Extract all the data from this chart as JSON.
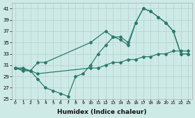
{
  "xlabel": "Humidex (Indice chaleur)",
  "bg_color": "#ceeae7",
  "grid_color": "#b8d8d5",
  "line_color": "#2a7a6a",
  "xlim": [
    -0.5,
    23.5
  ],
  "ylim": [
    25,
    42
  ],
  "yticks": [
    25,
    27,
    29,
    31,
    33,
    35,
    37,
    39,
    41
  ],
  "xticks": [
    0,
    1,
    2,
    3,
    4,
    5,
    6,
    7,
    8,
    9,
    10,
    11,
    12,
    13,
    14,
    15,
    16,
    17,
    18,
    19,
    20,
    21,
    22,
    23
  ],
  "line1_x": [
    0,
    1,
    2,
    3,
    4,
    5,
    6,
    7,
    8,
    9,
    10,
    11,
    12,
    13,
    14,
    15,
    16,
    17,
    18,
    19,
    20,
    21,
    22,
    23
  ],
  "line1_y": [
    30.5,
    30.0,
    30.0,
    28.5,
    27.0,
    26.5,
    26.0,
    25.5,
    29.0,
    29.5,
    31.0,
    33.0,
    34.5,
    36.0,
    35.5,
    34.5,
    38.5,
    41.0,
    40.5,
    39.5,
    38.5,
    37.0,
    33.0,
    33.0
  ],
  "line2_x": [
    0,
    2,
    3,
    4,
    10,
    12,
    13,
    14,
    15,
    16,
    17,
    18,
    19,
    20,
    21,
    22,
    23
  ],
  "line2_y": [
    30.5,
    30.0,
    31.5,
    31.5,
    35.0,
    37.0,
    36.0,
    36.0,
    35.0,
    38.5,
    41.0,
    40.5,
    39.5,
    38.5,
    37.0,
    33.0,
    33.0
  ],
  "line3_x": [
    0,
    1,
    2,
    3,
    10,
    11,
    12,
    13,
    14,
    15,
    16,
    17,
    18,
    19,
    20,
    21,
    22,
    23
  ],
  "line3_y": [
    30.5,
    30.5,
    30.0,
    29.5,
    30.5,
    30.5,
    31.0,
    31.5,
    31.5,
    32.0,
    32.0,
    32.5,
    32.5,
    33.0,
    33.0,
    33.5,
    33.5,
    33.5
  ]
}
